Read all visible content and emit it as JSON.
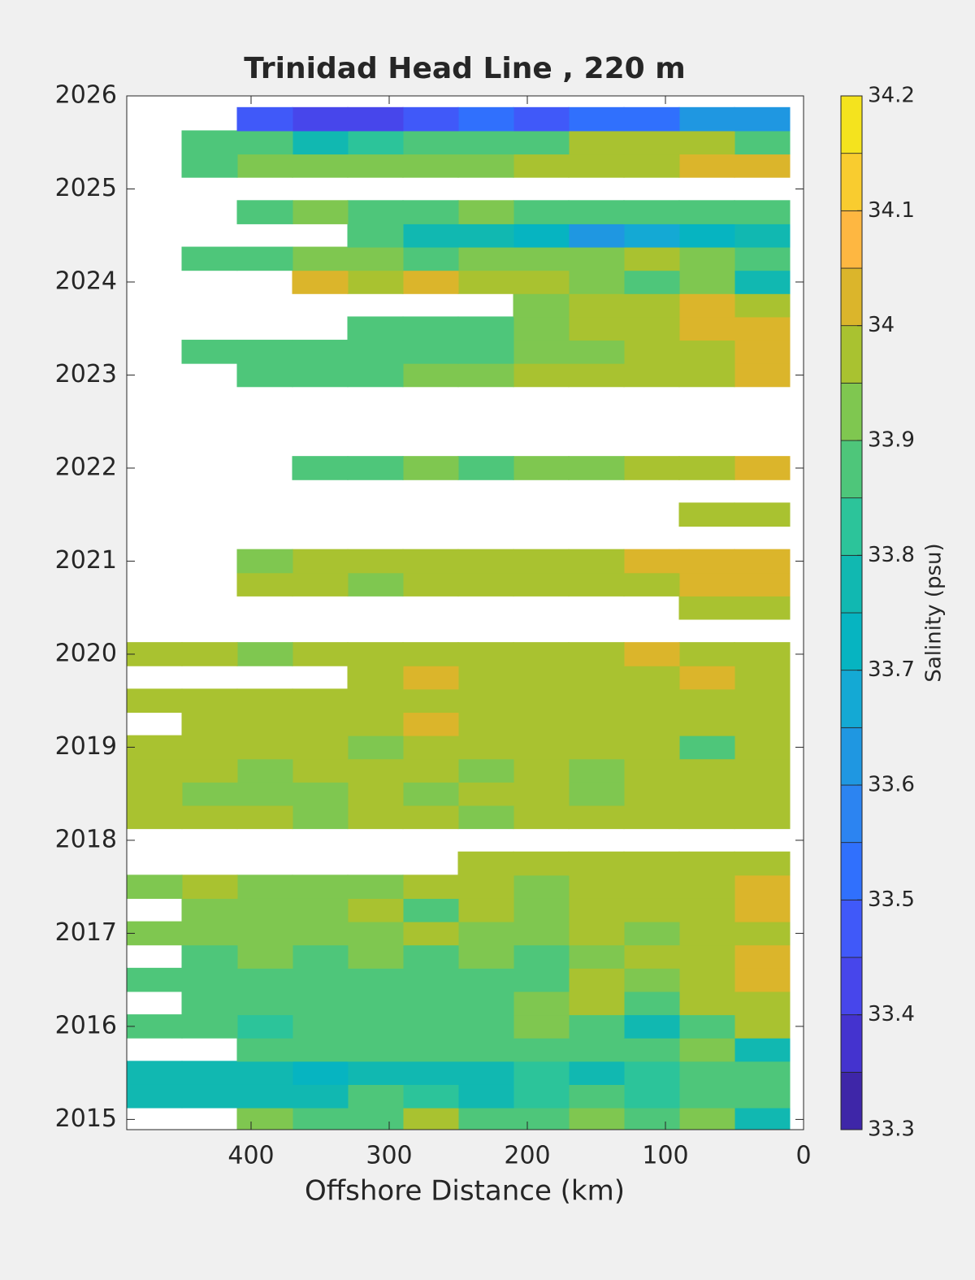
{
  "chart_data": {
    "type": "contourf",
    "title": "Trinidad Head Line , 220 m",
    "xlabel": "Offshore Distance (km)",
    "colorbar_label": "Salinity (psu)",
    "xlim": [
      490,
      0
    ],
    "xticks": [
      400,
      300,
      200,
      100,
      0
    ],
    "ylim": [
      2014.89,
      2026
    ],
    "yticks": [
      2015,
      2016,
      2017,
      2018,
      2019,
      2020,
      2021,
      2022,
      2023,
      2024,
      2025,
      2026
    ],
    "clim": [
      33.3,
      34.2
    ],
    "cticks": [
      33.3,
      33.4,
      33.5,
      33.6,
      33.7,
      33.8,
      33.9,
      34,
      34.1,
      34.2
    ],
    "colors": [
      "#3e26a8",
      "#4433cf",
      "#4746eb",
      "#4059f9",
      "#3070fd",
      "#2c84f1",
      "#1f97e1",
      "#14a9d4",
      "#06b4c1",
      "#11b8b1",
      "#2cc49a",
      "#4ec67a",
      "#7fc750",
      "#a9c230",
      "#dbb52b",
      "#feb741",
      "#f9cc2f",
      "#f4e31e"
    ],
    "x": [
      30,
      70,
      110,
      150,
      190,
      230,
      270,
      310,
      350,
      390,
      430,
      470
    ],
    "y": [
      2015,
      2015.25,
      2015.5,
      2015.75,
      2016,
      2016.25,
      2016.5,
      2016.75,
      2017,
      2017.25,
      2017.5,
      2017.75,
      2018,
      2018.25,
      2018.5,
      2018.75,
      2019,
      2019.25,
      2019.5,
      2019.75,
      2020,
      2020.25,
      2020.5,
      2020.75,
      2021,
      2021.25,
      2021.5,
      2021.75,
      2022,
      2022.25,
      2022.5,
      2022.75,
      2023,
      2023.25,
      2023.5,
      2023.75,
      2024,
      2024.25,
      2024.5,
      2024.75,
      2025,
      2025.25,
      2025.5,
      2025.75
    ],
    "z": [
      [
        33.8,
        33.93,
        33.9,
        33.92,
        33.88,
        33.9,
        33.95,
        33.9,
        33.88,
        33.92,
        null,
        null
      ],
      [
        33.85,
        33.87,
        33.83,
        33.85,
        33.82,
        33.8,
        33.83,
        33.85,
        33.78,
        33.8,
        33.75,
        33.75
      ],
      [
        33.9,
        33.85,
        33.83,
        33.8,
        33.82,
        33.78,
        33.75,
        33.75,
        33.73,
        33.75,
        33.75,
        33.75
      ],
      [
        33.8,
        33.92,
        33.88,
        33.9,
        33.88,
        33.85,
        33.9,
        33.87,
        33.85,
        33.85,
        null,
        null
      ],
      [
        33.95,
        33.9,
        33.8,
        33.9,
        33.92,
        33.88,
        33.85,
        33.87,
        33.85,
        33.83,
        33.85,
        33.87
      ],
      [
        33.97,
        33.95,
        33.9,
        33.95,
        33.92,
        33.88,
        33.85,
        33.9,
        33.88,
        33.85,
        33.9,
        null
      ],
      [
        34.05,
        33.97,
        33.93,
        33.97,
        33.9,
        33.87,
        33.85,
        33.85,
        33.88,
        33.87,
        33.85,
        33.88
      ],
      [
        34.03,
        33.98,
        33.95,
        33.92,
        33.9,
        33.93,
        33.9,
        33.92,
        33.9,
        33.92,
        33.9,
        null
      ],
      [
        33.97,
        33.98,
        33.92,
        33.95,
        33.93,
        33.92,
        33.95,
        33.93,
        33.92,
        33.93,
        33.93,
        33.93
      ],
      [
        34.05,
        34,
        33.95,
        33.97,
        33.93,
        33.95,
        33.9,
        33.95,
        33.93,
        33.92,
        33.93,
        null
      ],
      [
        34.03,
        33.98,
        33.95,
        33.97,
        33.92,
        33.97,
        33.95,
        33.92,
        33.93,
        33.92,
        33.95,
        33.93
      ],
      [
        33.97,
        33.98,
        33.97,
        33.97,
        33.97,
        34,
        null,
        null,
        null,
        null,
        null,
        null
      ],
      [
        null,
        null,
        null,
        null,
        null,
        null,
        null,
        null,
        null,
        null,
        null,
        null
      ],
      [
        33.97,
        33.95,
        33.97,
        33.95,
        33.97,
        33.93,
        33.95,
        33.95,
        33.93,
        33.95,
        33.97,
        33.97
      ],
      [
        33.97,
        33.95,
        33.97,
        33.93,
        33.95,
        33.97,
        33.93,
        33.95,
        33.93,
        33.92,
        33.93,
        33.95
      ],
      [
        33.95,
        33.97,
        33.95,
        33.93,
        33.97,
        33.93,
        33.95,
        33.97,
        33.95,
        33.93,
        33.95,
        33.97
      ],
      [
        33.97,
        33.87,
        33.97,
        33.95,
        33.97,
        33.97,
        33.95,
        33.93,
        33.95,
        33.97,
        33.97,
        33.97
      ],
      [
        33.97,
        33.95,
        33.97,
        34,
        33.97,
        33.97,
        34.03,
        33.97,
        34,
        33.97,
        33.97,
        null
      ],
      [
        34,
        33.97,
        33.97,
        33.97,
        34,
        33.97,
        33.97,
        33.97,
        33.97,
        33.97,
        33.97,
        33.97
      ],
      [
        34,
        34.03,
        33.97,
        33.97,
        34,
        33.97,
        34.03,
        33.97,
        null,
        null,
        null,
        null
      ],
      [
        33.97,
        34,
        34.03,
        33.97,
        33.97,
        33.97,
        33.97,
        33.97,
        33.97,
        33.93,
        33.95,
        33.97
      ],
      [
        null,
        null,
        null,
        null,
        null,
        null,
        null,
        null,
        null,
        null,
        null,
        null
      ],
      [
        33.97,
        34,
        null,
        null,
        null,
        null,
        null,
        null,
        null,
        null,
        null,
        null
      ],
      [
        34.03,
        34.03,
        34,
        33.97,
        33.97,
        33.97,
        33.97,
        33.92,
        33.97,
        33.95,
        null,
        null
      ],
      [
        34.05,
        34.03,
        34.05,
        34,
        33.97,
        33.97,
        33.97,
        33.97,
        33.95,
        33.93,
        null,
        null
      ],
      [
        null,
        null,
        null,
        null,
        null,
        null,
        null,
        null,
        null,
        null,
        null,
        null
      ],
      [
        33.97,
        33.95,
        null,
        null,
        null,
        null,
        null,
        null,
        null,
        null,
        null,
        null
      ],
      [
        null,
        null,
        null,
        null,
        null,
        null,
        null,
        null,
        null,
        null,
        null,
        null
      ],
      [
        34.03,
        33.97,
        33.97,
        33.93,
        33.93,
        33.9,
        33.92,
        33.88,
        33.87,
        null,
        null,
        null
      ],
      [
        null,
        null,
        null,
        null,
        null,
        null,
        null,
        null,
        null,
        null,
        null,
        null
      ],
      [
        null,
        null,
        null,
        null,
        null,
        null,
        null,
        null,
        null,
        null,
        null,
        null
      ],
      [
        null,
        null,
        null,
        null,
        null,
        null,
        null,
        null,
        null,
        null,
        null,
        null
      ],
      [
        34.03,
        34,
        33.97,
        33.95,
        33.97,
        33.92,
        33.93,
        33.87,
        33.9,
        33.87,
        null,
        null
      ],
      [
        34.03,
        33.97,
        33.97,
        33.93,
        33.92,
        33.9,
        33.9,
        33.88,
        33.88,
        33.87,
        33.85,
        null
      ],
      [
        34.03,
        34.05,
        33.97,
        33.95,
        33.92,
        33.9,
        33.88,
        33.9,
        null,
        null,
        null,
        null
      ],
      [
        34,
        34.05,
        33.97,
        33.95,
        33.93,
        null,
        null,
        null,
        null,
        null,
        null,
        null
      ],
      [
        33.8,
        33.93,
        33.9,
        33.92,
        33.97,
        34,
        34.03,
        34,
        34.03,
        null,
        null,
        null
      ],
      [
        33.9,
        33.93,
        33.95,
        33.93,
        33.93,
        33.92,
        33.9,
        33.92,
        33.93,
        33.9,
        33.87,
        null
      ],
      [
        33.75,
        33.7,
        33.68,
        33.65,
        33.7,
        33.75,
        33.8,
        33.85,
        null,
        null,
        null,
        null
      ],
      [
        33.88,
        33.9,
        33.88,
        33.87,
        33.9,
        33.93,
        33.9,
        33.9,
        33.92,
        33.85,
        null,
        null
      ],
      [
        null,
        null,
        null,
        null,
        null,
        null,
        null,
        null,
        null,
        null,
        null,
        null
      ],
      [
        34.03,
        34.03,
        33.97,
        33.95,
        33.95,
        33.93,
        33.93,
        33.92,
        33.92,
        33.93,
        33.9,
        null
      ],
      [
        33.85,
        33.95,
        33.97,
        33.95,
        33.9,
        33.87,
        33.85,
        33.83,
        33.8,
        33.85,
        33.88,
        null
      ],
      [
        33.65,
        33.6,
        33.55,
        33.5,
        33.45,
        33.5,
        33.45,
        33.4,
        33.4,
        33.45,
        null,
        null
      ]
    ]
  }
}
